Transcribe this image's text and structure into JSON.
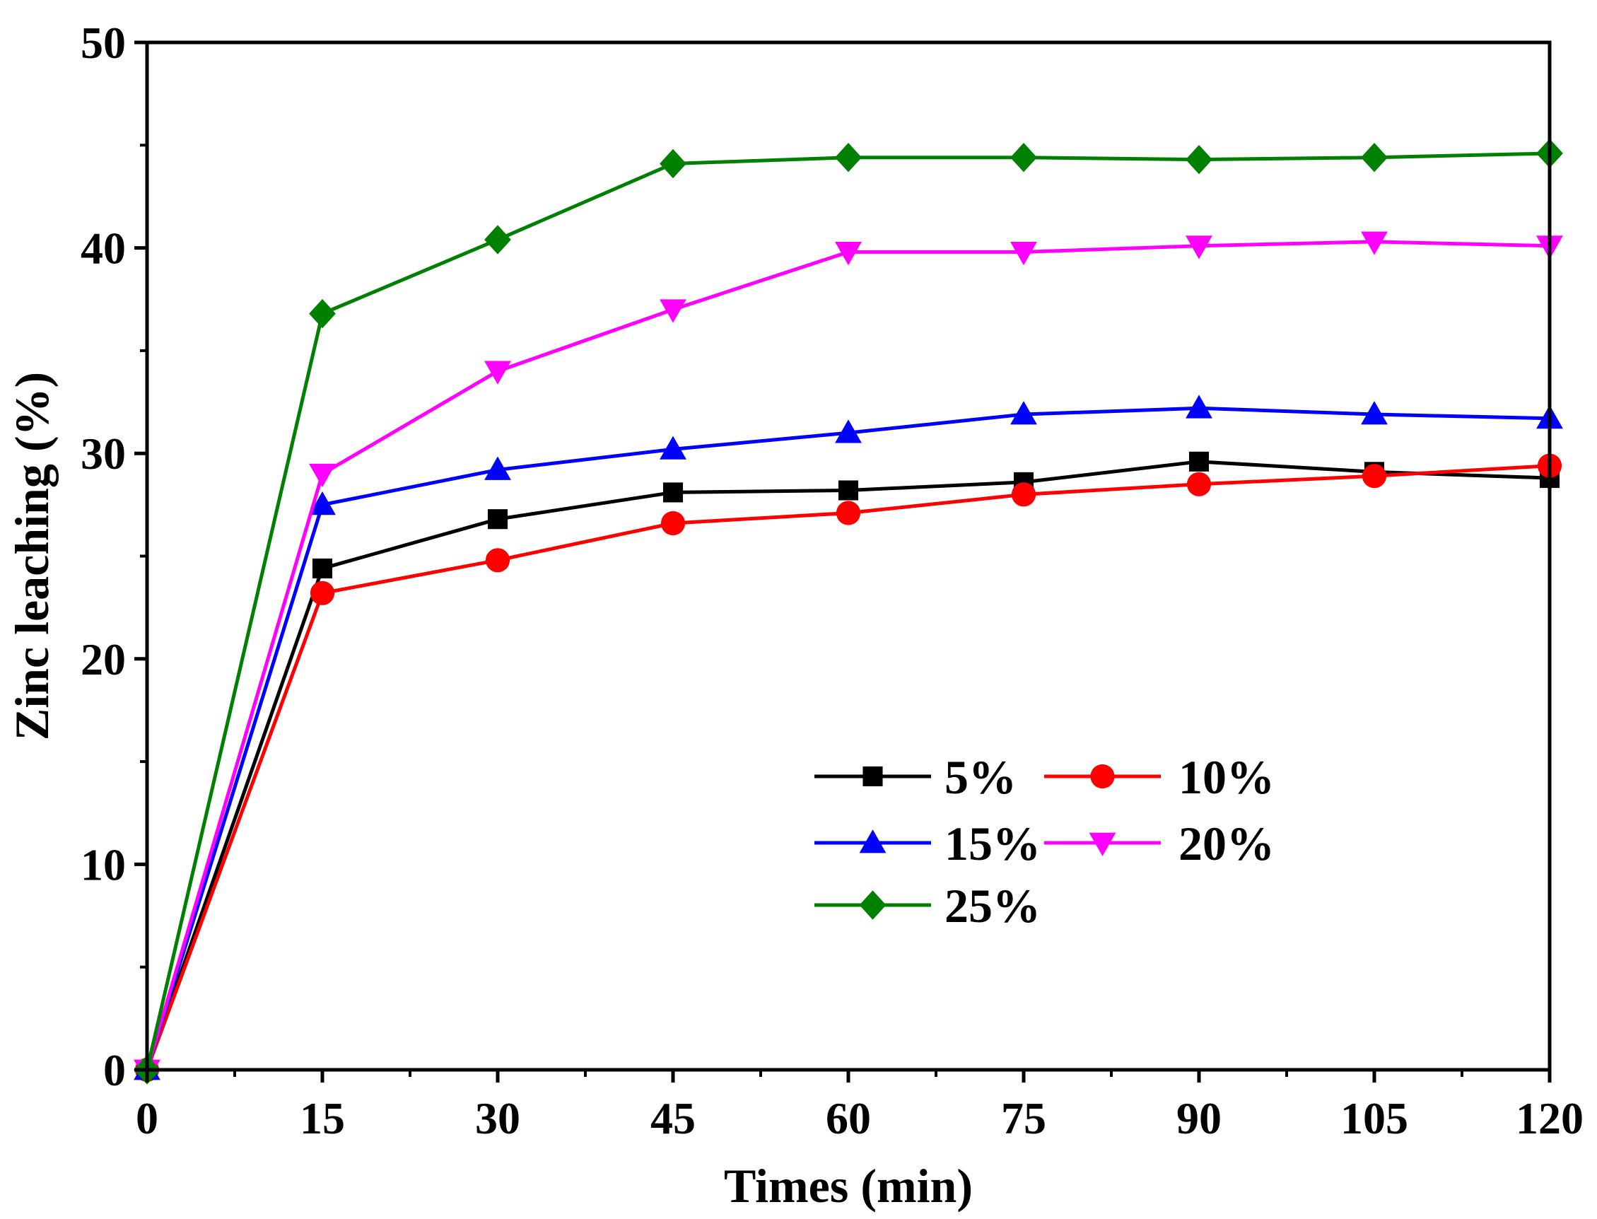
{
  "chart_data": {
    "type": "line",
    "title": "",
    "xlabel": "Times (min)",
    "ylabel": "Zinc leaching (%)",
    "xlim": [
      0,
      120
    ],
    "ylim": [
      0,
      50
    ],
    "x_major_ticks": [
      0,
      15,
      30,
      45,
      60,
      75,
      90,
      105,
      120
    ],
    "x_minor_ticks": [
      7.5,
      22.5,
      37.5,
      52.5,
      67.5,
      82.5,
      97.5,
      112.5
    ],
    "y_major_ticks": [
      0,
      10,
      20,
      30,
      40,
      50
    ],
    "y_minor_ticks": [
      5,
      15,
      25,
      35,
      45
    ],
    "x_tick_labels": [
      "0",
      "15",
      "30",
      "45",
      "60",
      "75",
      "90",
      "105",
      "120"
    ],
    "y_tick_labels": [
      "0",
      "10",
      "20",
      "30",
      "40",
      "50"
    ],
    "grid": false,
    "legend_position": "lower-right",
    "x": [
      0,
      15,
      30,
      45,
      60,
      75,
      90,
      105,
      120
    ],
    "series": [
      {
        "name": "5%",
        "legend_label": " 5%",
        "color": "#000000",
        "marker": "square",
        "values": [
          0,
          24.4,
          26.8,
          28.1,
          28.2,
          28.6,
          29.6,
          29.1,
          28.8
        ]
      },
      {
        "name": "10%",
        "legend_label": "10%",
        "color": "#ff0000",
        "marker": "circle",
        "values": [
          0,
          23.2,
          24.8,
          26.6,
          27.1,
          28.0,
          28.5,
          28.9,
          29.4
        ]
      },
      {
        "name": "15%",
        "legend_label": "15%",
        "color": "#0000ff",
        "marker": "triangle-up",
        "values": [
          0,
          27.5,
          29.2,
          30.2,
          31.0,
          31.9,
          32.2,
          31.9,
          31.7
        ]
      },
      {
        "name": "20%",
        "legend_label": "20%",
        "color": "#ff00ff",
        "marker": "triangle-down",
        "values": [
          0,
          29.0,
          34.0,
          37.0,
          39.8,
          39.8,
          40.1,
          40.3,
          40.1
        ]
      },
      {
        "name": "25%",
        "legend_label": "25%",
        "color": "#008000",
        "marker": "diamond",
        "values": [
          0,
          36.8,
          40.4,
          44.1,
          44.4,
          44.4,
          44.3,
          44.4,
          44.6
        ]
      }
    ]
  }
}
